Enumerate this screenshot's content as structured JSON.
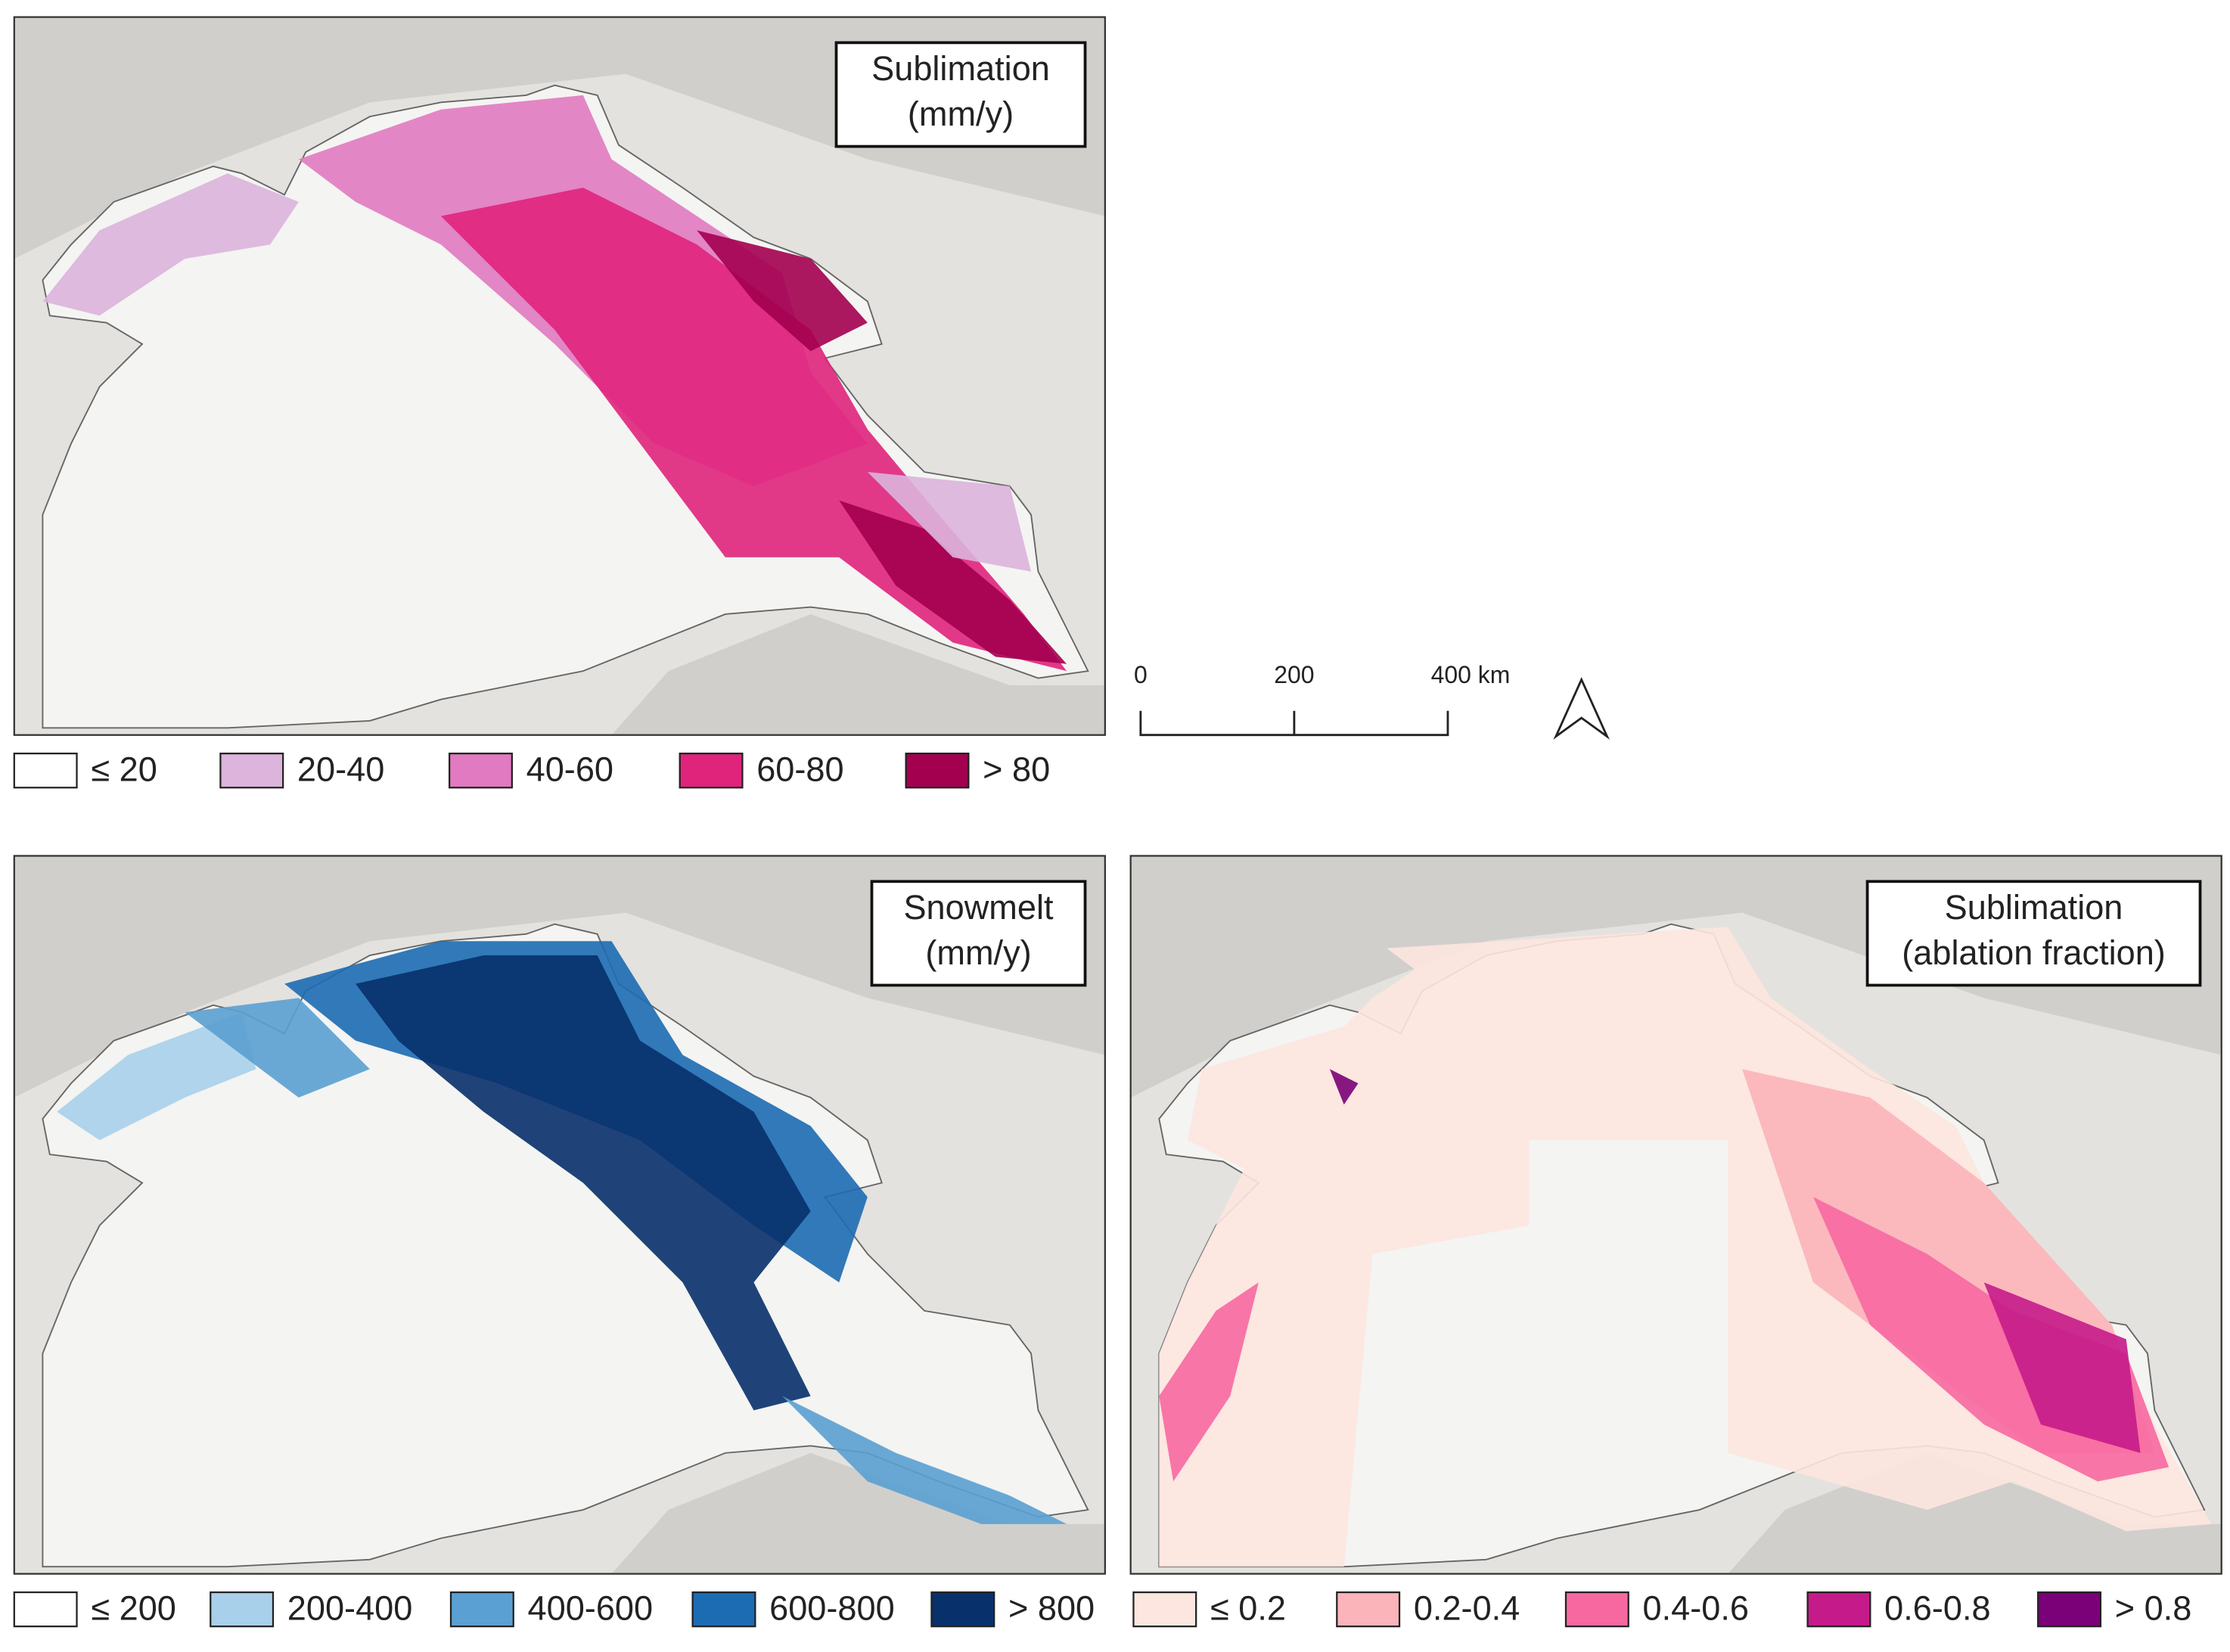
{
  "panels": [
    {
      "title": [
        "Sublimation",
        "(mm/y)"
      ],
      "legend": [
        {
          "label": "≤ 20",
          "color": "#ffffff"
        },
        {
          "label": "20-40",
          "color": "#dcb4dc"
        },
        {
          "label": "40-60",
          "color": "#e17ac0"
        },
        {
          "label": "60-80",
          "color": "#e0247c"
        },
        {
          "label": "> 80",
          "color": "#a3004f"
        }
      ]
    },
    {
      "title": [
        "Snowmelt",
        "(mm/y)"
      ],
      "legend": [
        {
          "label": "≤ 200",
          "color": "#ffffff"
        },
        {
          "label": "200-400",
          "color": "#a9d0ea"
        },
        {
          "label": "400-600",
          "color": "#5aa0d2"
        },
        {
          "label": "600-800",
          "color": "#1c6cb3"
        },
        {
          "label": "> 800",
          "color": "#08306b"
        }
      ]
    },
    {
      "title": [
        "Sublimation",
        "(ablation fraction)"
      ],
      "legend": [
        {
          "label": "≤ 0.2",
          "color": "#fde6df"
        },
        {
          "label": "0.2-0.4",
          "color": "#fbb4b9"
        },
        {
          "label": "0.4-0.6",
          "color": "#f768a1"
        },
        {
          "label": "0.6-0.8",
          "color": "#c51b8a"
        },
        {
          "label": "> 0.8",
          "color": "#7a0177"
        }
      ]
    }
  ],
  "scale_bar": {
    "labels": [
      "0",
      "200",
      "400 km"
    ]
  }
}
